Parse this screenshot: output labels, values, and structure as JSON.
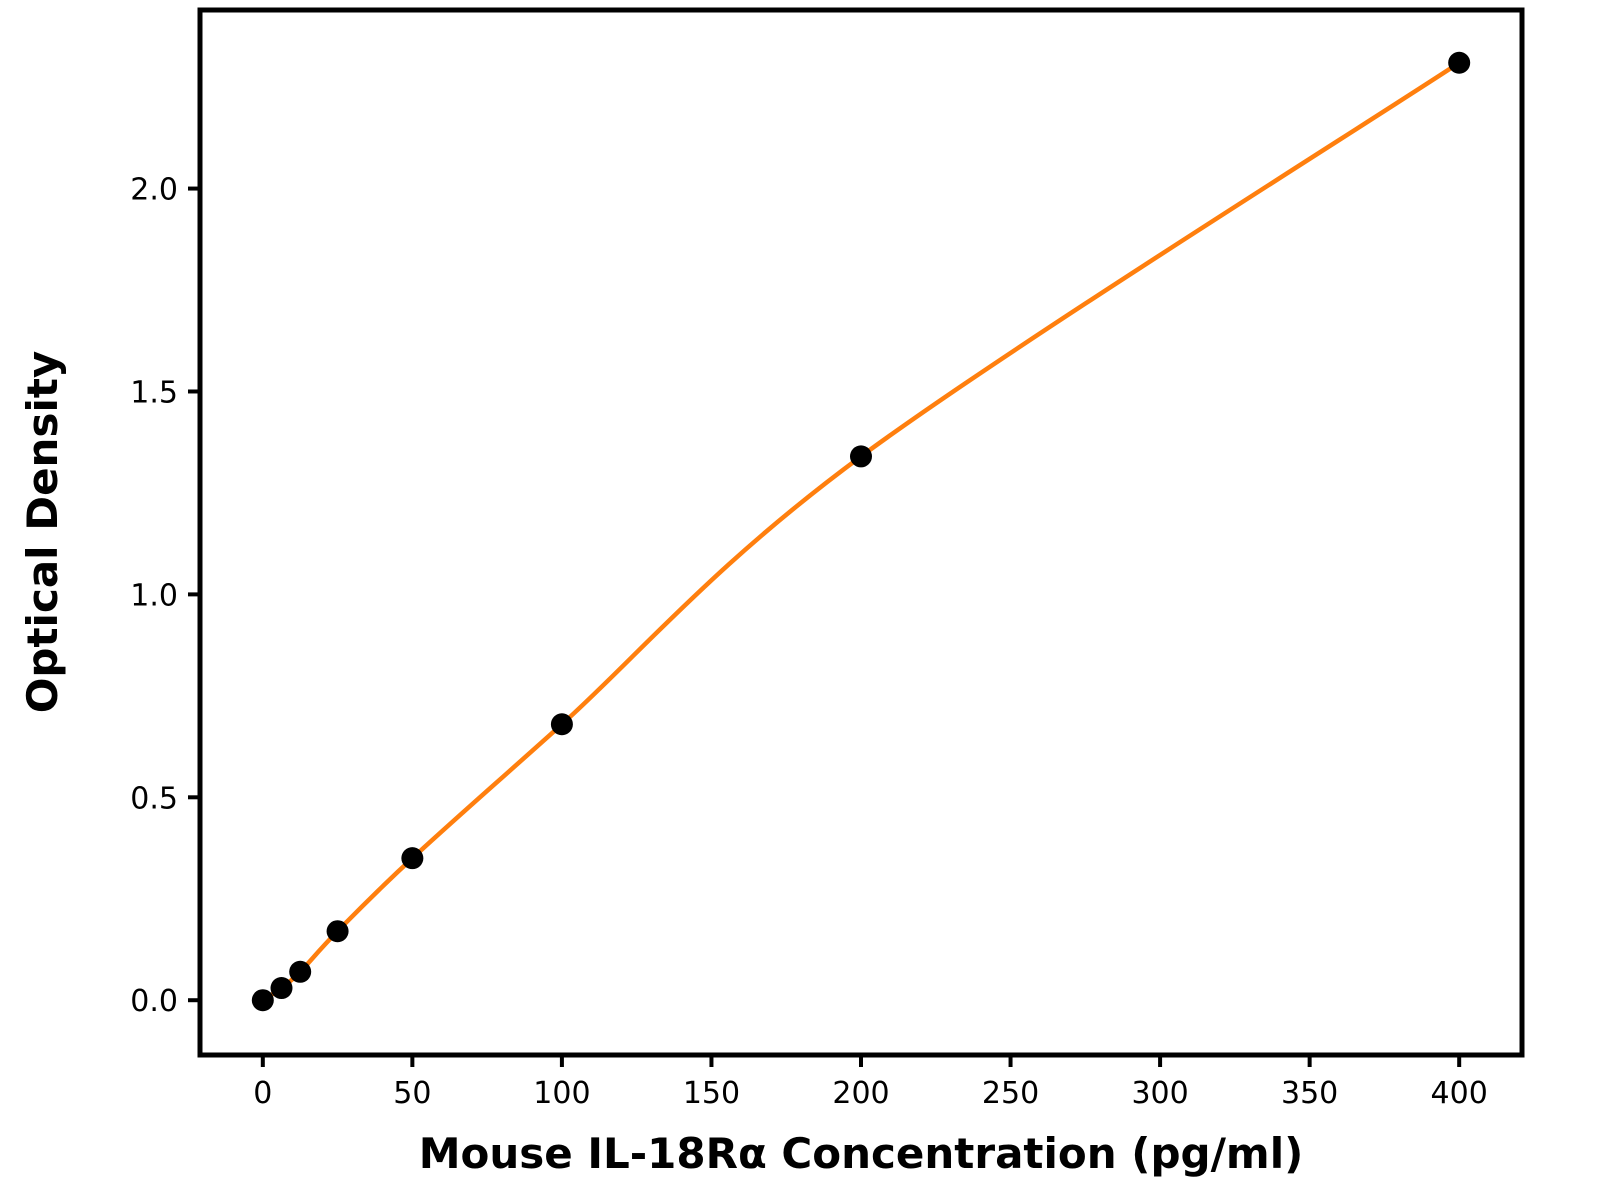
{
  "chart_data": {
    "type": "scatter",
    "title": "",
    "xlabel": "Mouse IL-18Rα Concentration (pg/ml)",
    "ylabel": "Optical Density",
    "series": [
      {
        "name": "standard-curve",
        "x": [
          0,
          6.25,
          12.5,
          25,
          50,
          100,
          200,
          400
        ],
        "y": [
          0.0,
          0.03,
          0.07,
          0.17,
          0.35,
          0.68,
          1.34,
          2.31
        ]
      }
    ],
    "fit_line": "smooth curve through all points",
    "x_ticks": [
      {
        "value": 0,
        "label": "0"
      },
      {
        "value": 50,
        "label": "50"
      },
      {
        "value": 100,
        "label": "100"
      },
      {
        "value": 150,
        "label": "150"
      },
      {
        "value": 200,
        "label": "200"
      },
      {
        "value": 250,
        "label": "250"
      },
      {
        "value": 300,
        "label": "300"
      },
      {
        "value": 350,
        "label": "350"
      },
      {
        "value": 400,
        "label": "400"
      }
    ],
    "y_ticks": [
      {
        "value": 0.0,
        "label": "0.0"
      },
      {
        "value": 0.5,
        "label": "0.5"
      },
      {
        "value": 1.0,
        "label": "1.0"
      },
      {
        "value": 1.5,
        "label": "1.5"
      },
      {
        "value": 2.0,
        "label": "2.0"
      }
    ],
    "xlim": [
      -21,
      421
    ],
    "ylim": [
      -0.135,
      2.44
    ],
    "grid": false,
    "legend": "none",
    "line_color": "#ff7f0e",
    "marker_color": "#000000",
    "axis_color": "#000000",
    "background_color": "#ffffff"
  }
}
